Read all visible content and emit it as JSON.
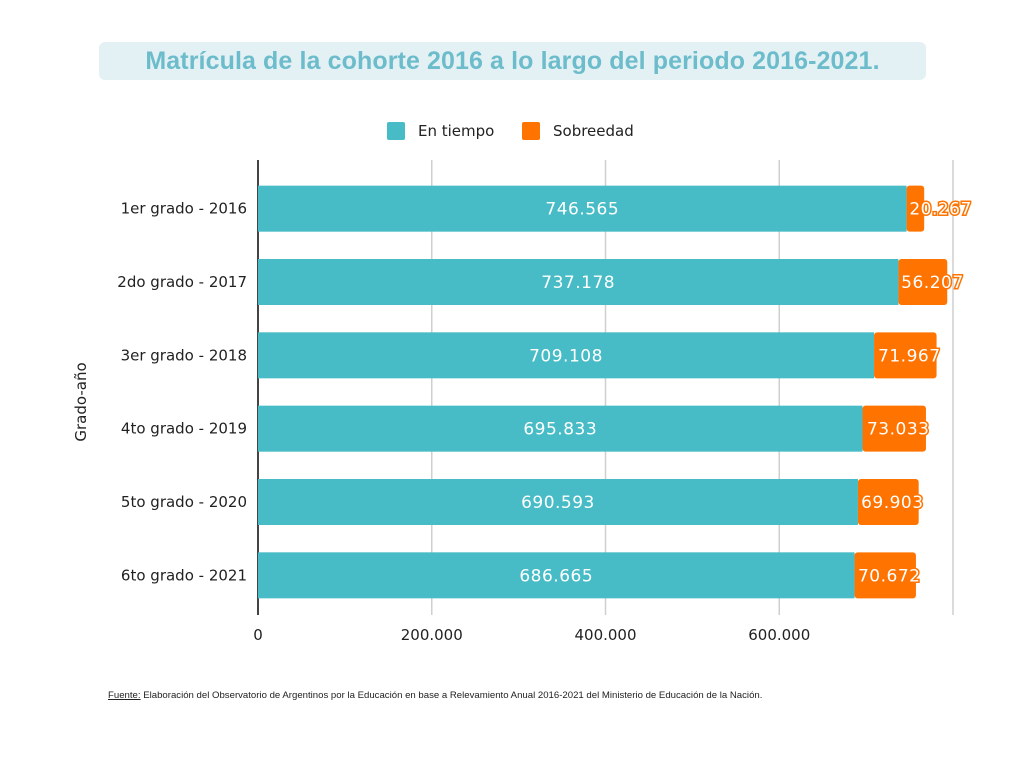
{
  "chart_data": {
    "type": "bar",
    "orientation": "horizontal",
    "stacked": true,
    "title": "Matrícula de la cohorte 2016 a lo largo del periodo 2016-2021.",
    "ylabel": "Grado-año",
    "xlabel": "",
    "categories": [
      "1er grado - 2016",
      "2do grado - 2017",
      "3er grado - 2018",
      "4to grado - 2019",
      "5to grado - 2020",
      "6to grado - 2021"
    ],
    "series": [
      {
        "name": "En tiempo",
        "color": "#47bcc6",
        "values": [
          746565,
          737178,
          709108,
          695833,
          690593,
          686665
        ],
        "labels": [
          "746.565",
          "737.178",
          "709.108",
          "695.833",
          "690.593",
          "686.665"
        ]
      },
      {
        "name": "Sobreedad",
        "color": "#ff7300",
        "values": [
          20267,
          56207,
          71967,
          73033,
          69903,
          70672
        ],
        "labels": [
          "20.267",
          "56.207",
          "71.967",
          "73.033",
          "69.903",
          "70.672"
        ]
      }
    ],
    "xlim": [
      0,
      800000
    ],
    "xticks": [
      0,
      200000,
      400000,
      600000
    ],
    "xtick_labels": [
      "0",
      "200.000",
      "400.000",
      "600.000"
    ],
    "grid": true,
    "legend": "top"
  },
  "footer": {
    "label": "Fuente:",
    "text": " Elaboración del Observatorio de Argentinos por la Educación en base a Relevamiento Anual 2016-2021 del Ministerio de Educación de la Nación."
  }
}
